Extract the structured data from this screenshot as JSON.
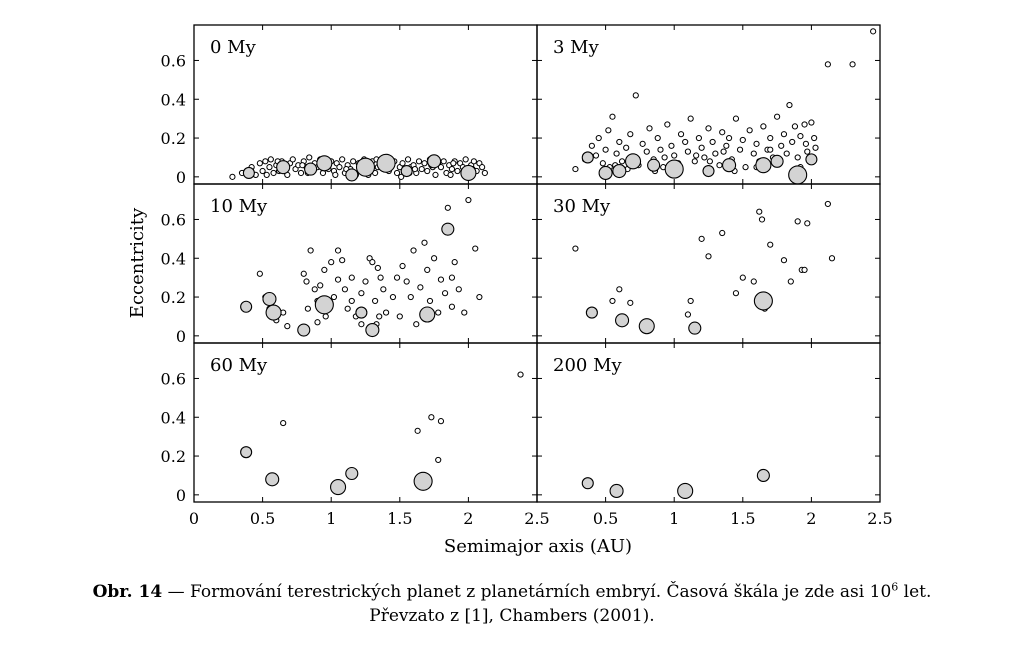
{
  "figure": {
    "ylabel": "Eccentricity",
    "xlabel": "Semimajor axis (AU)",
    "x_ticks": [
      "0",
      "0.5",
      "1",
      "1.5",
      "2",
      "2.5"
    ],
    "y_ticks": [
      "0",
      "0.2",
      "0.4",
      "0.6"
    ]
  },
  "caption": {
    "label": "Obr. 14",
    "line1_a": " — Formování terestrických planet z planetárních embryí. Časová škála je zde asi 10",
    "line1_sup": "6",
    "line1_b": " let.",
    "line2": "Převzato z [1], Chambers (2001)."
  },
  "chart_data": [
    {
      "type": "scatter",
      "title": "0 My",
      "xlim": [
        0,
        2.5
      ],
      "ylim": [
        0,
        0.75
      ],
      "marker_fill": "#d3d3d3",
      "small_points": [
        [
          0.28,
          0.0
        ],
        [
          0.35,
          0.02
        ],
        [
          0.42,
          0.05
        ],
        [
          0.45,
          0.01
        ],
        [
          0.48,
          0.07
        ],
        [
          0.5,
          0.03
        ],
        [
          0.52,
          0.08
        ],
        [
          0.55,
          0.05
        ],
        [
          0.56,
          0.09
        ],
        [
          0.58,
          0.02
        ],
        [
          0.6,
          0.06
        ],
        [
          0.62,
          0.03
        ],
        [
          0.64,
          0.08
        ],
        [
          0.66,
          0.05
        ],
        [
          0.68,
          0.01
        ],
        [
          0.7,
          0.07
        ],
        [
          0.72,
          0.09
        ],
        [
          0.74,
          0.04
        ],
        [
          0.76,
          0.06
        ],
        [
          0.78,
          0.02
        ],
        [
          0.8,
          0.08
        ],
        [
          0.82,
          0.05
        ],
        [
          0.84,
          0.1
        ],
        [
          0.86,
          0.03
        ],
        [
          0.88,
          0.07
        ],
        [
          0.9,
          0.05
        ],
        [
          0.92,
          0.09
        ],
        [
          0.94,
          0.02
        ],
        [
          0.96,
          0.06
        ],
        [
          0.98,
          0.04
        ],
        [
          1.0,
          0.08
        ],
        [
          1.02,
          0.03
        ],
        [
          1.04,
          0.07
        ],
        [
          1.06,
          0.05
        ],
        [
          1.08,
          0.09
        ],
        [
          1.1,
          0.02
        ],
        [
          1.12,
          0.06
        ],
        [
          1.14,
          0.04
        ],
        [
          1.16,
          0.08
        ],
        [
          1.18,
          0.01
        ],
        [
          1.2,
          0.07
        ],
        [
          1.22,
          0.05
        ],
        [
          1.24,
          0.09
        ],
        [
          1.26,
          0.03
        ],
        [
          1.28,
          0.06
        ],
        [
          1.3,
          0.08
        ],
        [
          1.32,
          0.02
        ],
        [
          1.34,
          0.05
        ],
        [
          1.36,
          0.07
        ],
        [
          1.38,
          0.04
        ],
        [
          1.4,
          0.09
        ],
        [
          1.42,
          0.03
        ],
        [
          1.44,
          0.06
        ],
        [
          1.46,
          0.08
        ],
        [
          1.48,
          0.02
        ],
        [
          1.5,
          0.05
        ],
        [
          1.52,
          0.07
        ],
        [
          1.54,
          0.03
        ],
        [
          1.56,
          0.09
        ],
        [
          1.58,
          0.05
        ],
        [
          1.6,
          0.06
        ],
        [
          1.62,
          0.02
        ],
        [
          1.64,
          0.08
        ],
        [
          1.66,
          0.04
        ],
        [
          1.68,
          0.07
        ],
        [
          1.7,
          0.03
        ],
        [
          1.72,
          0.09
        ],
        [
          1.74,
          0.05
        ],
        [
          1.76,
          0.01
        ],
        [
          1.78,
          0.07
        ],
        [
          1.8,
          0.05
        ],
        [
          1.82,
          0.08
        ],
        [
          1.84,
          0.02
        ],
        [
          1.86,
          0.06
        ],
        [
          1.88,
          0.04
        ],
        [
          1.9,
          0.08
        ],
        [
          1.92,
          0.03
        ],
        [
          1.94,
          0.07
        ],
        [
          1.96,
          0.05
        ],
        [
          1.98,
          0.09
        ],
        [
          2.0,
          0.02
        ],
        [
          2.02,
          0.06
        ],
        [
          2.04,
          0.08
        ],
        [
          2.06,
          0.03
        ],
        [
          2.08,
          0.07
        ],
        [
          2.1,
          0.05
        ],
        [
          2.12,
          0.02
        ],
        [
          0.53,
          0.01
        ],
        [
          0.67,
          0.04
        ],
        [
          0.83,
          0.02
        ],
        [
          0.97,
          0.08
        ],
        [
          1.11,
          0.04
        ],
        [
          1.27,
          0.01
        ],
        [
          1.43,
          0.07
        ],
        [
          1.57,
          0.02
        ],
        [
          1.73,
          0.06
        ],
        [
          1.87,
          0.01
        ],
        [
          2.03,
          0.04
        ],
        [
          0.61,
          0.08
        ],
        [
          0.79,
          0.06
        ],
        [
          1.03,
          0.01
        ],
        [
          1.33,
          0.09
        ],
        [
          1.61,
          0.04
        ],
        [
          1.89,
          0.07
        ],
        [
          1.51,
          0.0
        ]
      ],
      "large_points": [
        [
          0.4,
          0.02
        ],
        [
          0.65,
          0.05
        ],
        [
          0.95,
          0.07
        ],
        [
          1.15,
          0.01
        ],
        [
          1.4,
          0.07
        ],
        [
          1.55,
          0.03
        ],
        [
          1.75,
          0.08
        ],
        [
          2.0,
          0.02
        ],
        [
          0.85,
          0.04
        ],
        [
          1.25,
          0.05
        ]
      ]
    },
    {
      "type": "scatter",
      "title": "3 My",
      "xlim": [
        0,
        2.5
      ],
      "ylim": [
        0,
        0.75
      ],
      "marker_fill": "#d3d3d3",
      "small_points": [
        [
          0.28,
          0.04
        ],
        [
          0.35,
          0.09
        ],
        [
          0.4,
          0.16
        ],
        [
          0.43,
          0.11
        ],
        [
          0.45,
          0.2
        ],
        [
          0.48,
          0.07
        ],
        [
          0.5,
          0.14
        ],
        [
          0.52,
          0.24
        ],
        [
          0.53,
          0.05
        ],
        [
          0.55,
          0.31
        ],
        [
          0.58,
          0.12
        ],
        [
          0.6,
          0.18
        ],
        [
          0.62,
          0.08
        ],
        [
          0.65,
          0.15
        ],
        [
          0.68,
          0.22
        ],
        [
          0.7,
          0.1
        ],
        [
          0.72,
          0.42
        ],
        [
          0.74,
          0.06
        ],
        [
          0.77,
          0.17
        ],
        [
          0.8,
          0.13
        ],
        [
          0.82,
          0.25
        ],
        [
          0.85,
          0.09
        ],
        [
          0.88,
          0.2
        ],
        [
          0.9,
          0.14
        ],
        [
          0.92,
          0.05
        ],
        [
          0.95,
          0.27
        ],
        [
          0.98,
          0.16
        ],
        [
          1.0,
          0.11
        ],
        [
          1.03,
          0.07
        ],
        [
          1.05,
          0.22
        ],
        [
          1.08,
          0.18
        ],
        [
          1.1,
          0.13
        ],
        [
          1.12,
          0.3
        ],
        [
          1.15,
          0.08
        ],
        [
          1.18,
          0.2
        ],
        [
          1.2,
          0.15
        ],
        [
          1.22,
          0.1
        ],
        [
          1.25,
          0.25
        ],
        [
          1.28,
          0.18
        ],
        [
          1.3,
          0.12
        ],
        [
          1.33,
          0.06
        ],
        [
          1.35,
          0.23
        ],
        [
          1.38,
          0.16
        ],
        [
          1.4,
          0.2
        ],
        [
          1.42,
          0.09
        ],
        [
          1.45,
          0.3
        ],
        [
          1.48,
          0.14
        ],
        [
          1.5,
          0.19
        ],
        [
          1.52,
          0.05
        ],
        [
          1.55,
          0.24
        ],
        [
          1.58,
          0.12
        ],
        [
          1.6,
          0.17
        ],
        [
          1.62,
          0.08
        ],
        [
          1.65,
          0.26
        ],
        [
          1.68,
          0.14
        ],
        [
          1.7,
          0.2
        ],
        [
          1.72,
          0.1
        ],
        [
          1.75,
          0.31
        ],
        [
          1.78,
          0.16
        ],
        [
          1.8,
          0.22
        ],
        [
          1.82,
          0.12
        ],
        [
          1.84,
          0.37
        ],
        [
          1.86,
          0.18
        ],
        [
          1.88,
          0.26
        ],
        [
          1.9,
          0.1
        ],
        [
          1.92,
          0.21
        ],
        [
          1.95,
          0.27
        ],
        [
          1.97,
          0.13
        ],
        [
          2.0,
          0.28
        ],
        [
          2.02,
          0.2
        ],
        [
          2.03,
          0.15
        ],
        [
          2.12,
          0.58
        ],
        [
          2.3,
          0.58
        ],
        [
          2.45,
          0.75
        ],
        [
          0.66,
          0.04
        ],
        [
          0.86,
          0.03
        ],
        [
          1.02,
          0.02
        ],
        [
          1.44,
          0.03
        ],
        [
          1.6,
          0.05
        ],
        [
          0.93,
          0.1
        ],
        [
          1.16,
          0.11
        ],
        [
          1.36,
          0.13
        ],
        [
          1.7,
          0.14
        ],
        [
          1.96,
          0.17
        ],
        [
          0.57,
          0.06
        ],
        [
          1.26,
          0.08
        ],
        [
          1.92,
          0.05
        ]
      ],
      "large_points": [
        [
          0.37,
          0.1
        ],
        [
          0.6,
          0.03
        ],
        [
          0.7,
          0.08
        ],
        [
          0.85,
          0.06
        ],
        [
          1.0,
          0.04
        ],
        [
          1.25,
          0.03
        ],
        [
          1.4,
          0.06
        ],
        [
          1.65,
          0.06
        ],
        [
          1.75,
          0.08
        ],
        [
          1.9,
          0.01
        ],
        [
          2.0,
          0.09
        ],
        [
          0.5,
          0.02
        ]
      ]
    },
    {
      "type": "scatter",
      "title": "10 My",
      "xlim": [
        0,
        2.5
      ],
      "ylim": [
        0,
        0.75
      ],
      "marker_fill": "#d3d3d3",
      "small_points": [
        [
          0.48,
          0.32
        ],
        [
          0.52,
          0.2
        ],
        [
          0.55,
          0.14
        ],
        [
          0.6,
          0.08
        ],
        [
          0.65,
          0.12
        ],
        [
          0.8,
          0.32
        ],
        [
          0.82,
          0.28
        ],
        [
          0.83,
          0.14
        ],
        [
          0.85,
          0.44
        ],
        [
          0.88,
          0.24
        ],
        [
          0.9,
          0.18
        ],
        [
          0.92,
          0.26
        ],
        [
          0.95,
          0.34
        ],
        [
          1.0,
          0.38
        ],
        [
          1.02,
          0.2
        ],
        [
          1.05,
          0.29
        ],
        [
          1.08,
          0.39
        ],
        [
          1.1,
          0.24
        ],
        [
          1.12,
          0.14
        ],
        [
          1.15,
          0.3
        ],
        [
          1.18,
          0.1
        ],
        [
          1.22,
          0.22
        ],
        [
          1.25,
          0.28
        ],
        [
          1.28,
          0.4
        ],
        [
          1.3,
          0.38
        ],
        [
          1.32,
          0.18
        ],
        [
          1.34,
          0.35
        ],
        [
          1.36,
          0.3
        ],
        [
          1.38,
          0.24
        ],
        [
          1.4,
          0.12
        ],
        [
          1.45,
          0.2
        ],
        [
          1.48,
          0.3
        ],
        [
          1.52,
          0.36
        ],
        [
          1.55,
          0.28
        ],
        [
          1.58,
          0.2
        ],
        [
          1.6,
          0.44
        ],
        [
          1.62,
          0.06
        ],
        [
          1.65,
          0.25
        ],
        [
          1.68,
          0.48
        ],
        [
          1.7,
          0.34
        ],
        [
          1.72,
          0.18
        ],
        [
          1.75,
          0.4
        ],
        [
          1.78,
          0.12
        ],
        [
          1.8,
          0.29
        ],
        [
          1.83,
          0.22
        ],
        [
          1.85,
          0.66
        ],
        [
          1.88,
          0.3
        ],
        [
          1.9,
          0.38
        ],
        [
          1.93,
          0.24
        ],
        [
          1.97,
          0.12
        ],
        [
          2.0,
          0.7
        ],
        [
          2.05,
          0.45
        ],
        [
          2.08,
          0.2
        ],
        [
          0.68,
          0.05
        ],
        [
          1.05,
          0.44
        ],
        [
          1.22,
          0.06
        ],
        [
          1.35,
          0.1
        ],
        [
          0.96,
          0.1
        ],
        [
          1.15,
          0.18
        ],
        [
          1.5,
          0.1
        ],
        [
          1.88,
          0.15
        ],
        [
          0.9,
          0.07
        ],
        [
          1.33,
          0.06
        ]
      ],
      "large_points": [
        [
          0.38,
          0.15
        ],
        [
          0.55,
          0.19
        ],
        [
          0.58,
          0.12
        ],
        [
          0.8,
          0.03
        ],
        [
          0.95,
          0.16
        ],
        [
          1.22,
          0.12
        ],
        [
          1.3,
          0.03
        ],
        [
          1.7,
          0.11
        ],
        [
          1.85,
          0.55
        ]
      ]
    },
    {
      "type": "scatter",
      "title": "30 My",
      "xlim": [
        0,
        2.5
      ],
      "ylim": [
        0,
        0.75
      ],
      "marker_fill": "#d3d3d3",
      "small_points": [
        [
          0.28,
          0.45
        ],
        [
          0.55,
          0.18
        ],
        [
          0.6,
          0.24
        ],
        [
          0.68,
          0.17
        ],
        [
          1.12,
          0.18
        ],
        [
          1.2,
          0.5
        ],
        [
          1.25,
          0.41
        ],
        [
          1.35,
          0.53
        ],
        [
          1.45,
          0.22
        ],
        [
          1.5,
          0.3
        ],
        [
          1.58,
          0.28
        ],
        [
          1.62,
          0.64
        ],
        [
          1.64,
          0.6
        ],
        [
          1.66,
          0.14
        ],
        [
          1.7,
          0.47
        ],
        [
          1.8,
          0.39
        ],
        [
          1.85,
          0.28
        ],
        [
          1.9,
          0.59
        ],
        [
          1.93,
          0.34
        ],
        [
          1.95,
          0.34
        ],
        [
          1.97,
          0.58
        ],
        [
          2.12,
          0.68
        ],
        [
          2.15,
          0.4
        ],
        [
          1.1,
          0.11
        ]
      ],
      "large_points": [
        [
          0.4,
          0.12
        ],
        [
          0.62,
          0.08
        ],
        [
          0.8,
          0.05
        ],
        [
          1.15,
          0.04
        ],
        [
          1.65,
          0.18
        ]
      ]
    },
    {
      "type": "scatter",
      "title": "60 My",
      "xlim": [
        0,
        2.5
      ],
      "ylim": [
        0,
        0.75
      ],
      "marker_fill": "#d3d3d3",
      "small_points": [
        [
          0.65,
          0.37
        ],
        [
          1.63,
          0.33
        ],
        [
          1.73,
          0.4
        ],
        [
          1.78,
          0.18
        ],
        [
          1.8,
          0.38
        ],
        [
          2.38,
          0.62
        ]
      ],
      "large_points": [
        [
          0.38,
          0.22
        ],
        [
          0.57,
          0.08
        ],
        [
          1.05,
          0.04
        ],
        [
          1.15,
          0.11
        ],
        [
          1.67,
          0.07
        ]
      ]
    },
    {
      "type": "scatter",
      "title": "200 My",
      "xlim": [
        0,
        2.5
      ],
      "ylim": [
        0,
        0.75
      ],
      "marker_fill": "#d3d3d3",
      "small_points": [],
      "large_points": [
        [
          0.37,
          0.06
        ],
        [
          0.58,
          0.02
        ],
        [
          1.08,
          0.02
        ],
        [
          1.65,
          0.1
        ]
      ]
    }
  ]
}
